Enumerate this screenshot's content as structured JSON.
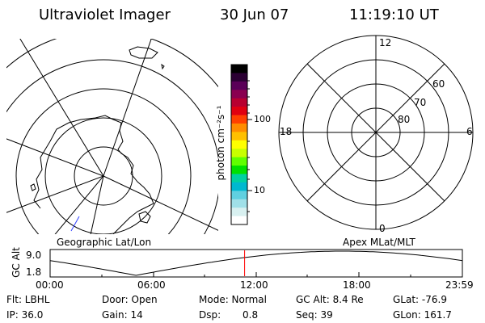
{
  "header": {
    "instrument": "Ultraviolet Imager",
    "date": "30 Jun 07",
    "time": "11:19:10 UT"
  },
  "colorbar": {
    "unit_label": "photon cm⁻²s⁻¹",
    "tick_100": "100",
    "tick_10": "10",
    "colors": [
      "#000000",
      "#2b0033",
      "#5a0058",
      "#8a0050",
      "#b80030",
      "#e00010",
      "#ff4000",
      "#ff8c00",
      "#ffc000",
      "#ffff00",
      "#c8ff00",
      "#60ff00",
      "#00e000",
      "#00d0a0",
      "#00b8d0",
      "#60d0e0",
      "#a0e0e8",
      "#d8f0f0",
      "#ffffff"
    ]
  },
  "left_map": {
    "label": "Geographic Lat/Lon"
  },
  "right_map": {
    "label": "Apex MLat/MLT",
    "mlt_12": "12",
    "mlt_18": "18",
    "mlt_6": "6",
    "mlt_0": "0",
    "lat_60": "60",
    "lat_70": "70",
    "lat_80": "80"
  },
  "orbit_plot": {
    "ylabel": "GC Alt",
    "y_top": "9.0",
    "y_bottom": "1.8",
    "x_ticks": [
      "00:00",
      "06:00",
      "12:00",
      "18:00",
      "23:59"
    ],
    "current_time_marker_hours": 11.32,
    "marker_color": "#ff0000"
  },
  "info": {
    "row1": {
      "flt": "Flt: LBHL",
      "door": "Door: Open",
      "mode": "Mode: Normal",
      "gcalt": "GC Alt: 8.4 Re",
      "glat": "GLat: -76.9"
    },
    "row2": {
      "ip": "IP: 36.0",
      "gain": "Gain: 14",
      "dsp_label": "Dsp:",
      "dsp_value": "0.8",
      "seq": "Seq: 39",
      "glon": "GLon: 161.7"
    }
  }
}
